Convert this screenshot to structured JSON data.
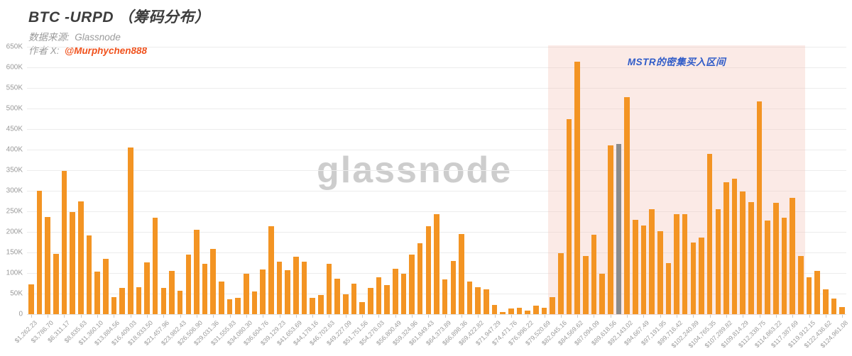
{
  "header": {
    "title": "BTC -URPD （筹码分布）",
    "source_label": "数据来源:",
    "source_value": "Glassnode",
    "author_label": "作者 X:",
    "author_value": "@Murphychen888"
  },
  "watermark": "glassnode",
  "chart_data": {
    "type": "bar",
    "title": "BTC -URPD （筹码分布）",
    "xlabel": "",
    "ylabel": "",
    "ylim": [
      0,
      650000
    ],
    "grid": true,
    "values_unit": "thousands of BTC (K)",
    "y_tick_labels": [
      "0",
      "50K",
      "100K",
      "150K",
      "200K",
      "250K",
      "300K",
      "350K",
      "400K",
      "450K",
      "500K",
      "550K",
      "600K",
      "650K"
    ],
    "x_tick_labels": [
      "$1,262.23",
      "$3,786.70",
      "$6,311.17",
      "$8,835.63",
      "$11,360.10",
      "$13,884.56",
      "$16,409.03",
      "$18,933.50",
      "$21,457.96",
      "$23,982.43",
      "$26,506.90",
      "$29,031.36",
      "$31,555.83",
      "$34,080.30",
      "$36,604.76",
      "$39,129.23",
      "$41,653.69",
      "$44,178.16",
      "$46,702.63",
      "$49,227.09",
      "$51,751.56",
      "$54,276.03",
      "$56,800.49",
      "$59,324.96",
      "$61,849.43",
      "$64,373.89",
      "$66,898.36",
      "$69,422.82",
      "$71,947.29",
      "$74,471.76",
      "$76,996.22",
      "$79,520.69",
      "$82,045.16",
      "$84,569.62",
      "$87,094.09",
      "$89,618.56",
      "$92,143.02",
      "$94,667.49",
      "$97,191.95",
      "$99,716.42",
      "$102,240.89",
      "$104,765.35",
      "$107,289.82",
      "$109,814.29",
      "$112,338.75",
      "$114,863.22",
      "$117,387.69",
      "$119,912.15",
      "$122,436.62",
      "$124,961.08"
    ],
    "x_tick_every_n_bars": 2,
    "values_k": [
      73,
      300,
      236,
      146,
      349,
      249,
      275,
      191,
      103,
      134,
      41,
      64,
      405,
      66,
      126,
      234,
      63,
      106,
      57,
      145,
      206,
      122,
      158,
      79,
      36,
      39,
      98,
      56,
      109,
      214,
      128,
      107,
      140,
      128,
      39,
      46,
      122,
      86,
      49,
      75,
      30,
      64,
      90,
      70,
      111,
      99,
      144,
      172,
      213,
      243,
      85,
      129,
      195,
      79,
      66,
      61,
      23,
      6,
      13,
      16,
      9,
      20,
      15,
      41,
      149,
      474,
      614,
      141,
      193,
      98,
      410,
      413,
      528,
      230,
      216,
      256,
      201,
      125,
      243,
      243,
      174,
      186,
      389,
      256,
      320,
      329,
      299,
      273,
      518,
      227,
      270,
      234,
      283,
      141,
      89,
      105,
      60,
      38,
      17
    ],
    "highlight_bar_index": 71,
    "highlight_region": {
      "start_index": 63,
      "end_index": 93,
      "label": "MSTR的密集买入区间"
    },
    "legend": null,
    "colors": {
      "bar": "#f39423",
      "highlight_bar": "#8b8b8b",
      "region_fill": "rgba(246,202,192,0.40)",
      "region_label_text": "#2f5bc8",
      "author_accent": "#f0521d",
      "watermark_text": "#cdcdcd"
    }
  }
}
